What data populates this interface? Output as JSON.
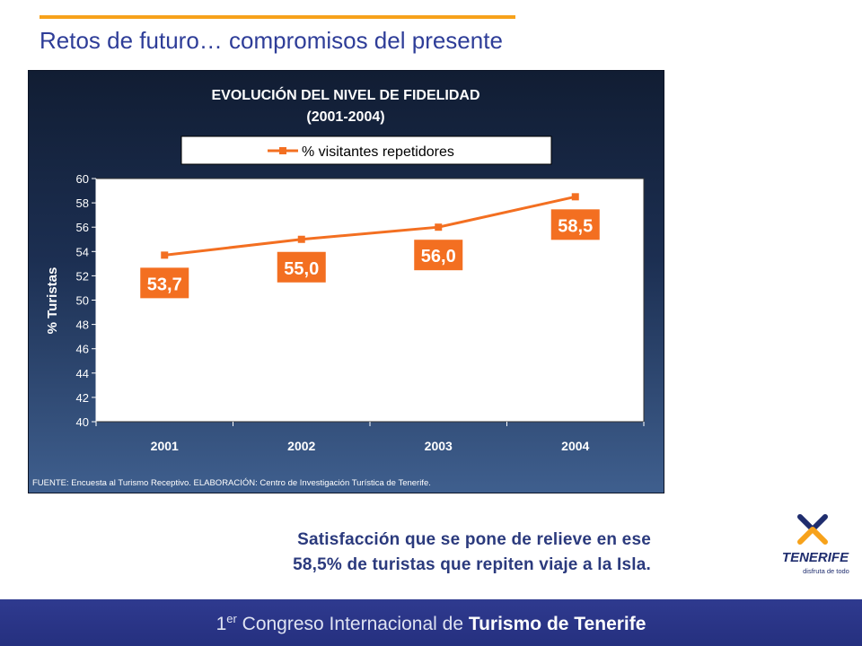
{
  "slide": {
    "title": "Retos de futuro… compromisos del presente",
    "caption_line1": "Satisfacción que se pone de relieve en ese",
    "caption_line2": "58,5% de turistas que repiten viaje a la Isla."
  },
  "footer": {
    "prefix_num": "1",
    "prefix_sup": "er",
    "regular": " Congreso Internacional de ",
    "bold": "Turismo de Tenerife"
  },
  "logo": {
    "name": "TENERIFE",
    "tagline": "disfruta de todo",
    "colors": {
      "x_mark": "#f7a21b",
      "x_mark_dark": "#1f2d6e",
      "text": "#1f2d6e"
    }
  },
  "chart_data": {
    "type": "line",
    "title": "EVOLUCIÓN  DEL NIVEL DE FIDELIDAD",
    "subtitle": "(2001-2004)",
    "ylabel": "% Turistas",
    "xlabel": "",
    "categories": [
      "2001",
      "2002",
      "2003",
      "2004"
    ],
    "series": [
      {
        "name": "% visitantes repetidores",
        "values": [
          53.7,
          55.0,
          56.0,
          58.5
        ],
        "labels": [
          "53,7",
          "55,0",
          "56,0",
          "58,5"
        ],
        "color": "#f36f21"
      }
    ],
    "ylim": [
      40,
      60
    ],
    "yticks": [
      "40",
      "42",
      "44",
      "46",
      "48",
      "50",
      "52",
      "54",
      "56",
      "58",
      "60"
    ],
    "grid": false,
    "legend": "top",
    "source_note": "FUENTE: Encuesta al Turismo Receptivo. ELABORACIÓN: Centro de Investigación Turística de Tenerife."
  },
  "colors": {
    "accent": "#f7a21b",
    "title": "#2e3d98",
    "panel": "#1c2f52",
    "band": "#2f3a8f"
  }
}
